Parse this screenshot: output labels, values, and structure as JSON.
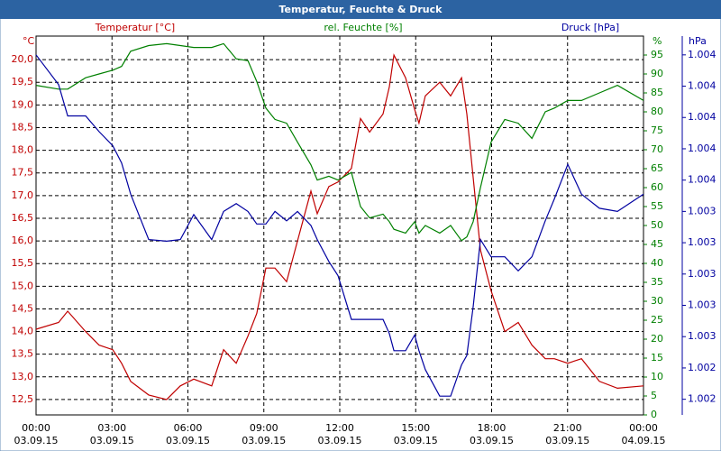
{
  "chart_data": {
    "type": "line",
    "title": "Temperatur, Feuchte & Druck",
    "ylabel": "°C",
    "y2label": "%",
    "y3label": "hPa",
    "x": [
      0,
      0.89,
      1.25,
      1.96,
      2.49,
      3.03,
      3.38,
      3.74,
      4.45,
      5.16,
      5.7,
      6.23,
      6.94,
      7.41,
      7.91,
      8.37,
      8.72,
      9.08,
      9.44,
      9.9,
      10.33,
      10.86,
      11.11,
      11.57,
      11.93,
      12.46,
      12.82,
      13.18,
      13.71,
      13.96,
      14.14,
      14.6,
      14.96,
      15.13,
      15.38,
      15.95,
      16.38,
      16.81,
      17.02,
      17.27,
      17.56,
      17.98,
      18.52,
      19.05,
      19.59,
      20.12,
      20.48,
      21.01,
      21.55,
      22.26,
      22.97,
      24
    ],
    "xlim": [
      0,
      24
    ],
    "xticks": [
      0,
      3,
      6,
      9,
      12,
      15,
      18,
      21,
      24
    ],
    "xtick_times": [
      "00:00",
      "03:00",
      "06:00",
      "09:00",
      "12:00",
      "15:00",
      "18:00",
      "21:00",
      "00:00"
    ],
    "xtick_dates": [
      "03.09.15",
      "03.09.15",
      "03.09.15",
      "03.09.15",
      "03.09.15",
      "03.09.15",
      "03.09.15",
      "03.09.15",
      "04.09.15"
    ],
    "ylim": [
      12.16,
      20.52
    ],
    "yticks": [
      {
        "value": 12.5,
        "label": "12,5"
      },
      {
        "value": 13,
        "label": "13,0"
      },
      {
        "value": 13.5,
        "label": "13,5"
      },
      {
        "value": 14,
        "label": "14,0"
      },
      {
        "value": 14.5,
        "label": "14,5"
      },
      {
        "value": 15,
        "label": "15,0"
      },
      {
        "value": 15.5,
        "label": "15,5"
      },
      {
        "value": 16,
        "label": "16,0"
      },
      {
        "value": 16.5,
        "label": "16,5"
      },
      {
        "value": 17,
        "label": "17,0"
      },
      {
        "value": 17.5,
        "label": "17,5"
      },
      {
        "value": 18,
        "label": "18,0"
      },
      {
        "value": 18.5,
        "label": "18,5"
      },
      {
        "value": 19,
        "label": "19,0"
      },
      {
        "value": 19.5,
        "label": "19,5"
      },
      {
        "value": 20,
        "label": "20,0"
      }
    ],
    "y2lim": [
      0,
      100
    ],
    "y2ticks": [
      0,
      5,
      10,
      15,
      20,
      25,
      30,
      35,
      40,
      45,
      50,
      55,
      60,
      65,
      70,
      75,
      80,
      85,
      90,
      95
    ],
    "y3lim": [
      1.00202,
      1.00444
    ],
    "y3ticks": [
      {
        "value": 1.00212,
        "label": "1.002"
      },
      {
        "value": 1.00232,
        "label": "1.002"
      },
      {
        "value": 1.00252,
        "label": "1.003"
      },
      {
        "value": 1.00272,
        "label": "1.003"
      },
      {
        "value": 1.00292,
        "label": "1.003"
      },
      {
        "value": 1.00312,
        "label": "1.003"
      },
      {
        "value": 1.00332,
        "label": "1.003"
      },
      {
        "value": 1.00352,
        "label": "1.004"
      },
      {
        "value": 1.00372,
        "label": "1.004"
      },
      {
        "value": 1.00392,
        "label": "1.004"
      },
      {
        "value": 1.00412,
        "label": "1.004"
      },
      {
        "value": 1.00432,
        "label": "1.004"
      }
    ],
    "grid": true,
    "series": [
      {
        "name": "Temperatur [°C]",
        "color": "#c00000",
        "axis": "y",
        "values": [
          14.05,
          14.2,
          14.45,
          14.0,
          13.7,
          13.6,
          13.3,
          12.9,
          12.6,
          12.5,
          12.8,
          12.95,
          12.8,
          13.6,
          13.3,
          13.9,
          14.4,
          15.4,
          15.4,
          15.1,
          16.0,
          17.1,
          16.6,
          17.2,
          17.3,
          17.6,
          18.7,
          18.4,
          18.8,
          19.4,
          20.1,
          19.6,
          18.9,
          18.6,
          19.2,
          19.5,
          19.2,
          19.6,
          18.8,
          17.4,
          15.8,
          14.9,
          14.0,
          14.2,
          13.7,
          13.4,
          13.4,
          13.3,
          13.4,
          12.9,
          12.75,
          12.8
        ]
      },
      {
        "name": "rel. Feuchte [%]",
        "color": "#008000",
        "axis": "y2",
        "values": [
          87,
          86,
          86,
          89,
          90,
          91,
          92,
          96,
          97.5,
          98,
          97.5,
          97,
          97,
          98,
          94,
          93.5,
          88,
          81,
          78,
          77,
          72,
          66,
          62,
          63,
          62,
          64,
          55,
          52,
          53,
          51,
          49,
          48,
          51,
          48,
          50,
          48,
          50,
          46,
          47,
          51,
          60,
          72,
          78,
          77,
          73,
          80,
          81,
          83,
          83,
          85,
          87,
          83
        ]
      },
      {
        "name": "Druck [hPa]",
        "color": "#0000a0",
        "axis": "y3",
        "values": [
          1.00432,
          1.00413,
          1.00393,
          1.00393,
          1.00383,
          1.00374,
          1.00363,
          1.00343,
          1.00314,
          1.00313,
          1.00314,
          1.0033,
          1.00314,
          1.00332,
          1.00337,
          1.00332,
          1.00324,
          1.00324,
          1.00332,
          1.00326,
          1.00332,
          1.00323,
          1.00314,
          1.003,
          1.00291,
          1.00263,
          1.00263,
          1.00263,
          1.00263,
          1.00254,
          1.00243,
          1.00243,
          1.00253,
          1.00243,
          1.00231,
          1.00214,
          1.00214,
          1.00234,
          1.0024,
          1.00271,
          1.00314,
          1.00303,
          1.00303,
          1.00294,
          1.00303,
          1.00326,
          1.0034,
          1.00362,
          1.00343,
          1.00334,
          1.00332,
          1.00343
        ]
      }
    ]
  }
}
